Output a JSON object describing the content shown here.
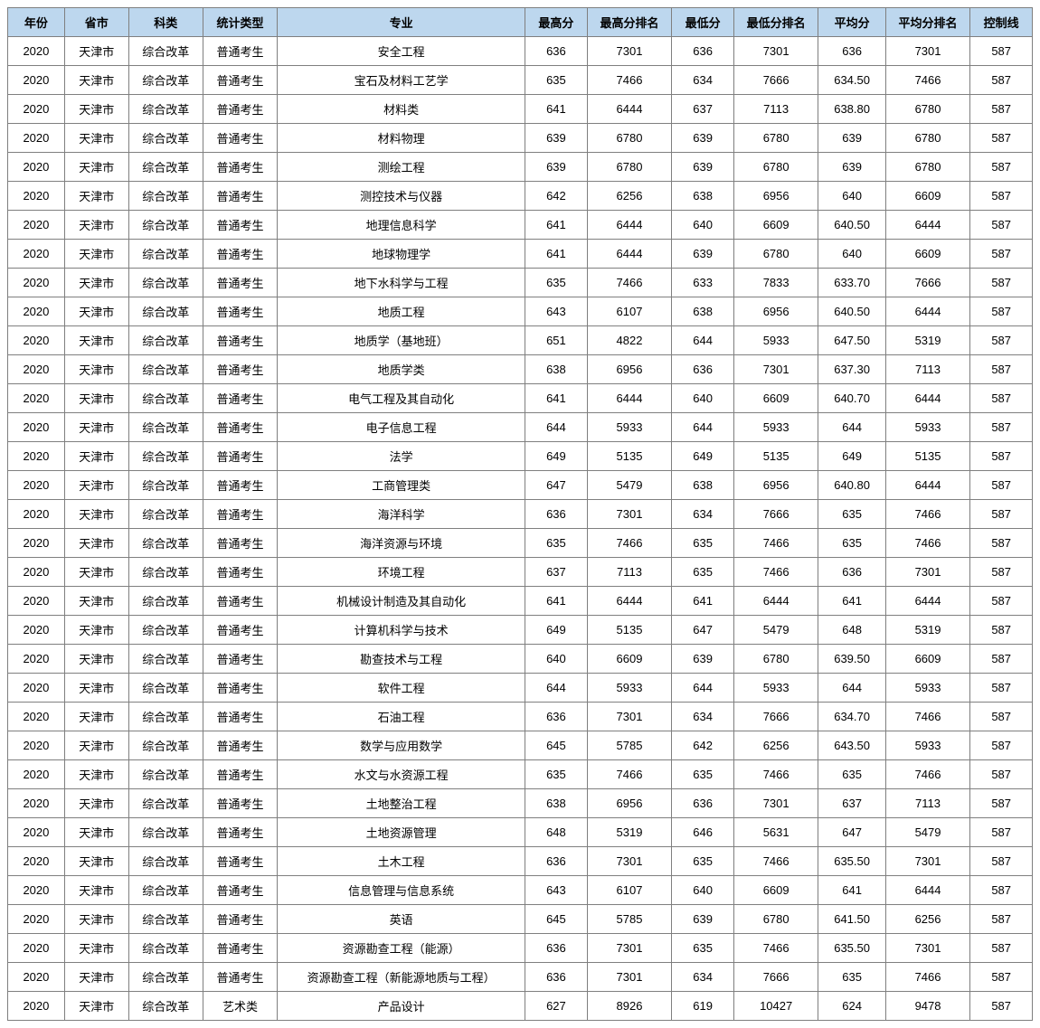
{
  "table": {
    "header_bg": "#bdd7ee",
    "border_color": "#7f7f7f",
    "columns": [
      {
        "key": "year",
        "label": "年份",
        "class": "col-year"
      },
      {
        "key": "province",
        "label": "省市",
        "class": "col-prov"
      },
      {
        "key": "category",
        "label": "科类",
        "class": "col-cat"
      },
      {
        "key": "stat_type",
        "label": "统计类型",
        "class": "col-type"
      },
      {
        "key": "major",
        "label": "专业",
        "class": "col-major"
      },
      {
        "key": "max",
        "label": "最高分",
        "class": "col-max"
      },
      {
        "key": "max_rank",
        "label": "最高分排名",
        "class": "col-maxr"
      },
      {
        "key": "min",
        "label": "最低分",
        "class": "col-min"
      },
      {
        "key": "min_rank",
        "label": "最低分排名",
        "class": "col-minr"
      },
      {
        "key": "avg",
        "label": "平均分",
        "class": "col-avg"
      },
      {
        "key": "avg_rank",
        "label": "平均分排名",
        "class": "col-avgr"
      },
      {
        "key": "ctrl",
        "label": "控制线",
        "class": "col-ctrl"
      }
    ],
    "rows": [
      {
        "year": "2020",
        "province": "天津市",
        "category": "综合改革",
        "stat_type": "普通考生",
        "major": "安全工程",
        "max": "636",
        "max_rank": "7301",
        "min": "636",
        "min_rank": "7301",
        "avg": "636",
        "avg_rank": "7301",
        "ctrl": "587"
      },
      {
        "year": "2020",
        "province": "天津市",
        "category": "综合改革",
        "stat_type": "普通考生",
        "major": "宝石及材料工艺学",
        "max": "635",
        "max_rank": "7466",
        "min": "634",
        "min_rank": "7666",
        "avg": "634.50",
        "avg_rank": "7466",
        "ctrl": "587"
      },
      {
        "year": "2020",
        "province": "天津市",
        "category": "综合改革",
        "stat_type": "普通考生",
        "major": "材料类",
        "max": "641",
        "max_rank": "6444",
        "min": "637",
        "min_rank": "7113",
        "avg": "638.80",
        "avg_rank": "6780",
        "ctrl": "587"
      },
      {
        "year": "2020",
        "province": "天津市",
        "category": "综合改革",
        "stat_type": "普通考生",
        "major": "材料物理",
        "max": "639",
        "max_rank": "6780",
        "min": "639",
        "min_rank": "6780",
        "avg": "639",
        "avg_rank": "6780",
        "ctrl": "587"
      },
      {
        "year": "2020",
        "province": "天津市",
        "category": "综合改革",
        "stat_type": "普通考生",
        "major": "测绘工程",
        "max": "639",
        "max_rank": "6780",
        "min": "639",
        "min_rank": "6780",
        "avg": "639",
        "avg_rank": "6780",
        "ctrl": "587"
      },
      {
        "year": "2020",
        "province": "天津市",
        "category": "综合改革",
        "stat_type": "普通考生",
        "major": "测控技术与仪器",
        "max": "642",
        "max_rank": "6256",
        "min": "638",
        "min_rank": "6956",
        "avg": "640",
        "avg_rank": "6609",
        "ctrl": "587"
      },
      {
        "year": "2020",
        "province": "天津市",
        "category": "综合改革",
        "stat_type": "普通考生",
        "major": "地理信息科学",
        "max": "641",
        "max_rank": "6444",
        "min": "640",
        "min_rank": "6609",
        "avg": "640.50",
        "avg_rank": "6444",
        "ctrl": "587"
      },
      {
        "year": "2020",
        "province": "天津市",
        "category": "综合改革",
        "stat_type": "普通考生",
        "major": "地球物理学",
        "max": "641",
        "max_rank": "6444",
        "min": "639",
        "min_rank": "6780",
        "avg": "640",
        "avg_rank": "6609",
        "ctrl": "587"
      },
      {
        "year": "2020",
        "province": "天津市",
        "category": "综合改革",
        "stat_type": "普通考生",
        "major": "地下水科学与工程",
        "max": "635",
        "max_rank": "7466",
        "min": "633",
        "min_rank": "7833",
        "avg": "633.70",
        "avg_rank": "7666",
        "ctrl": "587"
      },
      {
        "year": "2020",
        "province": "天津市",
        "category": "综合改革",
        "stat_type": "普通考生",
        "major": "地质工程",
        "max": "643",
        "max_rank": "6107",
        "min": "638",
        "min_rank": "6956",
        "avg": "640.50",
        "avg_rank": "6444",
        "ctrl": "587"
      },
      {
        "year": "2020",
        "province": "天津市",
        "category": "综合改革",
        "stat_type": "普通考生",
        "major": "地质学（基地班）",
        "max": "651",
        "max_rank": "4822",
        "min": "644",
        "min_rank": "5933",
        "avg": "647.50",
        "avg_rank": "5319",
        "ctrl": "587"
      },
      {
        "year": "2020",
        "province": "天津市",
        "category": "综合改革",
        "stat_type": "普通考生",
        "major": "地质学类",
        "max": "638",
        "max_rank": "6956",
        "min": "636",
        "min_rank": "7301",
        "avg": "637.30",
        "avg_rank": "7113",
        "ctrl": "587"
      },
      {
        "year": "2020",
        "province": "天津市",
        "category": "综合改革",
        "stat_type": "普通考生",
        "major": "电气工程及其自动化",
        "max": "641",
        "max_rank": "6444",
        "min": "640",
        "min_rank": "6609",
        "avg": "640.70",
        "avg_rank": "6444",
        "ctrl": "587"
      },
      {
        "year": "2020",
        "province": "天津市",
        "category": "综合改革",
        "stat_type": "普通考生",
        "major": "电子信息工程",
        "max": "644",
        "max_rank": "5933",
        "min": "644",
        "min_rank": "5933",
        "avg": "644",
        "avg_rank": "5933",
        "ctrl": "587"
      },
      {
        "year": "2020",
        "province": "天津市",
        "category": "综合改革",
        "stat_type": "普通考生",
        "major": "法学",
        "max": "649",
        "max_rank": "5135",
        "min": "649",
        "min_rank": "5135",
        "avg": "649",
        "avg_rank": "5135",
        "ctrl": "587"
      },
      {
        "year": "2020",
        "province": "天津市",
        "category": "综合改革",
        "stat_type": "普通考生",
        "major": "工商管理类",
        "max": "647",
        "max_rank": "5479",
        "min": "638",
        "min_rank": "6956",
        "avg": "640.80",
        "avg_rank": "6444",
        "ctrl": "587"
      },
      {
        "year": "2020",
        "province": "天津市",
        "category": "综合改革",
        "stat_type": "普通考生",
        "major": "海洋科学",
        "max": "636",
        "max_rank": "7301",
        "min": "634",
        "min_rank": "7666",
        "avg": "635",
        "avg_rank": "7466",
        "ctrl": "587"
      },
      {
        "year": "2020",
        "province": "天津市",
        "category": "综合改革",
        "stat_type": "普通考生",
        "major": "海洋资源与环境",
        "max": "635",
        "max_rank": "7466",
        "min": "635",
        "min_rank": "7466",
        "avg": "635",
        "avg_rank": "7466",
        "ctrl": "587"
      },
      {
        "year": "2020",
        "province": "天津市",
        "category": "综合改革",
        "stat_type": "普通考生",
        "major": "环境工程",
        "max": "637",
        "max_rank": "7113",
        "min": "635",
        "min_rank": "7466",
        "avg": "636",
        "avg_rank": "7301",
        "ctrl": "587"
      },
      {
        "year": "2020",
        "province": "天津市",
        "category": "综合改革",
        "stat_type": "普通考生",
        "major": "机械设计制造及其自动化",
        "max": "641",
        "max_rank": "6444",
        "min": "641",
        "min_rank": "6444",
        "avg": "641",
        "avg_rank": "6444",
        "ctrl": "587"
      },
      {
        "year": "2020",
        "province": "天津市",
        "category": "综合改革",
        "stat_type": "普通考生",
        "major": "计算机科学与技术",
        "max": "649",
        "max_rank": "5135",
        "min": "647",
        "min_rank": "5479",
        "avg": "648",
        "avg_rank": "5319",
        "ctrl": "587"
      },
      {
        "year": "2020",
        "province": "天津市",
        "category": "综合改革",
        "stat_type": "普通考生",
        "major": "勘查技术与工程",
        "max": "640",
        "max_rank": "6609",
        "min": "639",
        "min_rank": "6780",
        "avg": "639.50",
        "avg_rank": "6609",
        "ctrl": "587"
      },
      {
        "year": "2020",
        "province": "天津市",
        "category": "综合改革",
        "stat_type": "普通考生",
        "major": "软件工程",
        "max": "644",
        "max_rank": "5933",
        "min": "644",
        "min_rank": "5933",
        "avg": "644",
        "avg_rank": "5933",
        "ctrl": "587"
      },
      {
        "year": "2020",
        "province": "天津市",
        "category": "综合改革",
        "stat_type": "普通考生",
        "major": "石油工程",
        "max": "636",
        "max_rank": "7301",
        "min": "634",
        "min_rank": "7666",
        "avg": "634.70",
        "avg_rank": "7466",
        "ctrl": "587"
      },
      {
        "year": "2020",
        "province": "天津市",
        "category": "综合改革",
        "stat_type": "普通考生",
        "major": "数学与应用数学",
        "max": "645",
        "max_rank": "5785",
        "min": "642",
        "min_rank": "6256",
        "avg": "643.50",
        "avg_rank": "5933",
        "ctrl": "587"
      },
      {
        "year": "2020",
        "province": "天津市",
        "category": "综合改革",
        "stat_type": "普通考生",
        "major": "水文与水资源工程",
        "max": "635",
        "max_rank": "7466",
        "min": "635",
        "min_rank": "7466",
        "avg": "635",
        "avg_rank": "7466",
        "ctrl": "587"
      },
      {
        "year": "2020",
        "province": "天津市",
        "category": "综合改革",
        "stat_type": "普通考生",
        "major": "土地整治工程",
        "max": "638",
        "max_rank": "6956",
        "min": "636",
        "min_rank": "7301",
        "avg": "637",
        "avg_rank": "7113",
        "ctrl": "587"
      },
      {
        "year": "2020",
        "province": "天津市",
        "category": "综合改革",
        "stat_type": "普通考生",
        "major": "土地资源管理",
        "max": "648",
        "max_rank": "5319",
        "min": "646",
        "min_rank": "5631",
        "avg": "647",
        "avg_rank": "5479",
        "ctrl": "587"
      },
      {
        "year": "2020",
        "province": "天津市",
        "category": "综合改革",
        "stat_type": "普通考生",
        "major": "土木工程",
        "max": "636",
        "max_rank": "7301",
        "min": "635",
        "min_rank": "7466",
        "avg": "635.50",
        "avg_rank": "7301",
        "ctrl": "587"
      },
      {
        "year": "2020",
        "province": "天津市",
        "category": "综合改革",
        "stat_type": "普通考生",
        "major": "信息管理与信息系统",
        "max": "643",
        "max_rank": "6107",
        "min": "640",
        "min_rank": "6609",
        "avg": "641",
        "avg_rank": "6444",
        "ctrl": "587"
      },
      {
        "year": "2020",
        "province": "天津市",
        "category": "综合改革",
        "stat_type": "普通考生",
        "major": "英语",
        "max": "645",
        "max_rank": "5785",
        "min": "639",
        "min_rank": "6780",
        "avg": "641.50",
        "avg_rank": "6256",
        "ctrl": "587"
      },
      {
        "year": "2020",
        "province": "天津市",
        "category": "综合改革",
        "stat_type": "普通考生",
        "major": "资源勘查工程（能源）",
        "max": "636",
        "max_rank": "7301",
        "min": "635",
        "min_rank": "7466",
        "avg": "635.50",
        "avg_rank": "7301",
        "ctrl": "587"
      },
      {
        "year": "2020",
        "province": "天津市",
        "category": "综合改革",
        "stat_type": "普通考生",
        "major": "资源勘查工程（新能源地质与工程）",
        "max": "636",
        "max_rank": "7301",
        "min": "634",
        "min_rank": "7666",
        "avg": "635",
        "avg_rank": "7466",
        "ctrl": "587"
      },
      {
        "year": "2020",
        "province": "天津市",
        "category": "综合改革",
        "stat_type": "艺术类",
        "major": "产品设计",
        "max": "627",
        "max_rank": "8926",
        "min": "619",
        "min_rank": "10427",
        "avg": "624",
        "avg_rank": "9478",
        "ctrl": "587"
      }
    ]
  }
}
